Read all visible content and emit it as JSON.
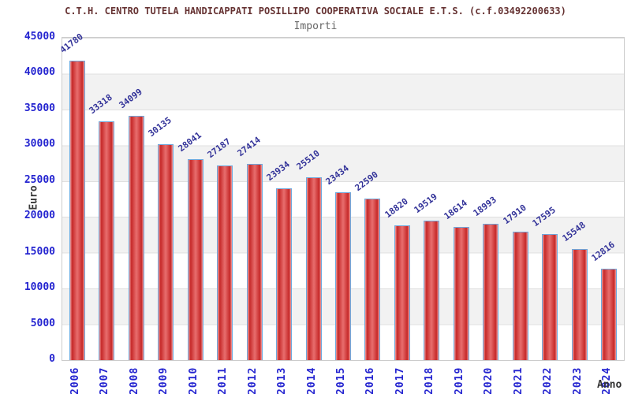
{
  "header": {
    "title": "C.T.H. CENTRO TUTELA HANDICAPPATI POSILLIPO COOPERATIVA SOCIALE E.T.S. (c.f.03492200633)",
    "subtitle": "Importi"
  },
  "axes": {
    "y_title": "Euro",
    "x_title": "Anno"
  },
  "chart_data": {
    "type": "bar",
    "title": "C.T.H. CENTRO TUTELA HANDICAPPATI POSILLIPO COOPERATIVA SOCIALE E.T.S. (c.f.03492200633)",
    "subtitle": "Importi",
    "xlabel": "Anno",
    "ylabel": "Euro",
    "categories": [
      "2006",
      "2007",
      "2008",
      "2009",
      "2010",
      "2011",
      "2012",
      "2013",
      "2014",
      "2015",
      "2016",
      "2017",
      "2018",
      "2019",
      "2020",
      "2021",
      "2022",
      "2023",
      "2024"
    ],
    "values": [
      41780,
      33318,
      34099,
      30135,
      28041,
      27187,
      27414,
      23934,
      25510,
      23434,
      22590,
      18820,
      19519,
      18614,
      18993,
      17910,
      17595,
      15548,
      12816
    ],
    "ylim": [
      0,
      45000
    ],
    "ytick_step": 5000,
    "yticks": [
      0,
      5000,
      10000,
      15000,
      20000,
      25000,
      30000,
      35000,
      40000,
      45000
    ],
    "grid": "horizontal gridlines every 5000 with alternating white/grey bands",
    "legend_position": "none",
    "value_labels": "above bars, rotated",
    "colors": {
      "bar_fill_dark": "#c62828",
      "bar_fill_mid": "#e86e6e",
      "bar_fill_edge": "#f2a0a0",
      "bar_border": "#6fa8dc",
      "tick_label": "#2424d0",
      "value_label": "#333399",
      "title": "#663333",
      "subtitle": "#666666",
      "axis_title": "#3a3a3a",
      "stripe": "#f2f2f2",
      "gridline": "#e0e0e0",
      "plot_border": "#cccccc",
      "background": "#ffffff"
    }
  }
}
